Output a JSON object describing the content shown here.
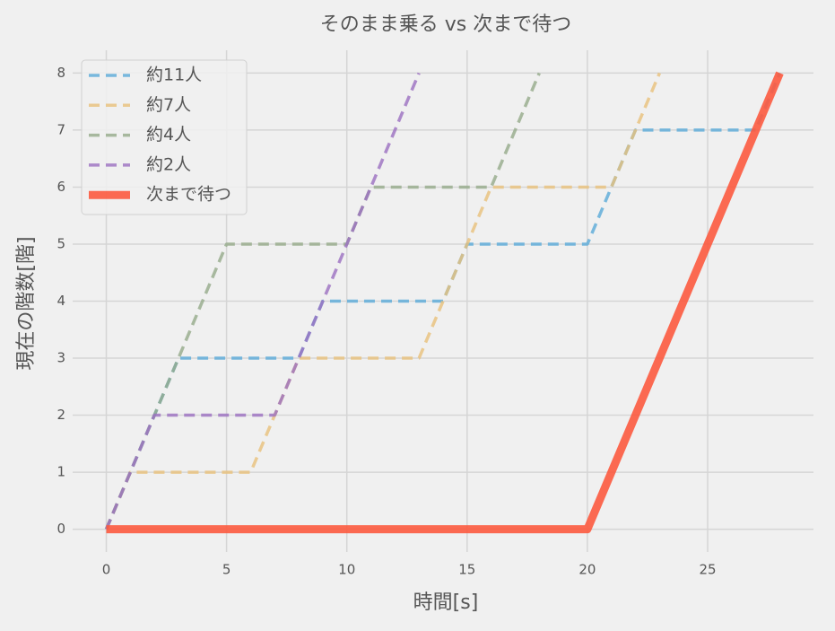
{
  "chart_data": {
    "type": "line",
    "title": "そのまま乗る vs 次まで待つ",
    "x_label": "時間[s]",
    "y_label": "現在の階数[階]",
    "xlim": [
      -1.4,
      29.4
    ],
    "ylim": [
      -0.4,
      8.4
    ],
    "xticks": [
      0,
      5,
      10,
      15,
      20,
      25
    ],
    "yticks": [
      0,
      1,
      2,
      3,
      4,
      5,
      6,
      7,
      8
    ],
    "grid": true,
    "legend": "upper left",
    "series": [
      {
        "name": "約11人",
        "color": "#5aaad8",
        "dashed": true,
        "x": [
          0,
          3,
          8,
          9,
          14,
          15,
          20,
          22,
          27,
          28
        ],
        "values": [
          0,
          3,
          3,
          4,
          4,
          5,
          5,
          7,
          7,
          8
        ]
      },
      {
        "name": "約7人",
        "color": "#e8c07a",
        "dashed": true,
        "x": [
          0,
          1,
          6,
          8,
          13,
          16,
          21,
          23
        ],
        "values": [
          0,
          1,
          1,
          3,
          3,
          6,
          6,
          8
        ]
      },
      {
        "name": "約4人",
        "color": "#95aa8a",
        "dashed": true,
        "x": [
          0,
          5,
          10,
          11,
          16,
          18
        ],
        "values": [
          0,
          5,
          5,
          6,
          6,
          8
        ]
      },
      {
        "name": "約2人",
        "color": "#9b6fc0",
        "dashed": true,
        "x": [
          0,
          2,
          7,
          13
        ],
        "values": [
          0,
          2,
          2,
          8
        ]
      },
      {
        "name": "次まで待つ",
        "color": "#fc5a3f",
        "dashed": false,
        "x": [
          0,
          20,
          28
        ],
        "values": [
          0,
          0,
          8
        ]
      }
    ]
  }
}
